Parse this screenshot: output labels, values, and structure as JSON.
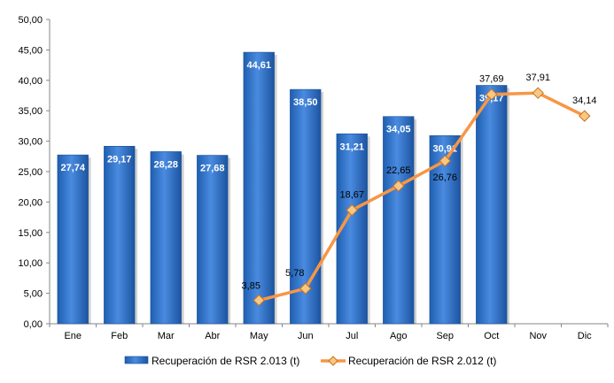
{
  "chart_data": {
    "type": "bar",
    "categories": [
      "Ene",
      "Feb",
      "Mar",
      "Abr",
      "May",
      "Jun",
      "Jul",
      "Ago",
      "Sep",
      "Oct",
      "Nov",
      "Dic"
    ],
    "series": [
      {
        "name": "Recuperación de RSR 2.013 (t)",
        "type": "bar",
        "color": "#2f73c9",
        "values": [
          27.74,
          29.17,
          28.28,
          27.68,
          44.61,
          38.5,
          31.21,
          34.05,
          30.91,
          39.17,
          null,
          null
        ],
        "labels": [
          "27,74",
          "29,17",
          "28,28",
          "27,68",
          "44,61",
          "38,50",
          "31,21",
          "34,05",
          "30,91",
          "39,17",
          "",
          ""
        ]
      },
      {
        "name": "Recuperación de RSR 2.012 (t)",
        "type": "line",
        "color": "#f79646",
        "values": [
          null,
          null,
          null,
          null,
          3.85,
          5.78,
          18.67,
          22.65,
          26.76,
          37.69,
          37.91,
          34.14
        ],
        "labels": [
          "",
          "",
          "",
          "",
          "3,85",
          "5,78",
          "18,67",
          "22,65",
          "26,76",
          "37,69",
          "37,91",
          "34,14"
        ]
      }
    ],
    "ylim": [
      0,
      50
    ],
    "yticks": [
      "0,00",
      "5,00",
      "10,00",
      "15,00",
      "20,00",
      "25,00",
      "30,00",
      "35,00",
      "40,00",
      "45,00",
      "50,00"
    ],
    "grid": false,
    "legend": "bottom"
  }
}
